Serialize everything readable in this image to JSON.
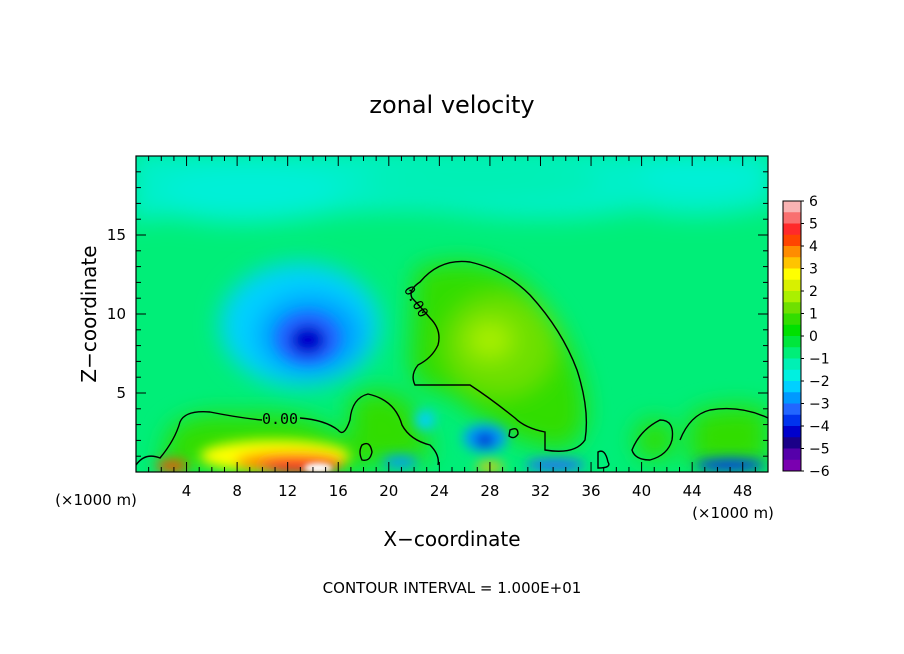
{
  "chart_data": {
    "type": "heatmap",
    "title": "zonal velocity",
    "xlabel": "X−coordinate",
    "ylabel": "Z−coordinate",
    "x_unit_left": "(×1000 m)",
    "x_unit_right": "(×1000 m)",
    "xlim": [
      0,
      50
    ],
    "ylim": [
      0,
      20
    ],
    "x_ticks": [
      "4",
      "8",
      "12",
      "16",
      "20",
      "24",
      "28",
      "32",
      "36",
      "40",
      "44",
      "48"
    ],
    "y_ticks": [
      "5",
      "10",
      "15"
    ],
    "contour_labels": [
      "0.00",
      "0.00"
    ],
    "colorbar": {
      "range": [
        -6,
        6
      ],
      "tick_labels": [
        "6",
        "5",
        "4",
        "3",
        "2",
        "1",
        "0",
        "−1",
        "−2",
        "−3",
        "−4",
        "−5",
        "−6"
      ],
      "colors": [
        "#f9b3b3",
        "#f97070",
        "#ff2a2a",
        "#ff4500",
        "#ff8c00",
        "#ffc400",
        "#ffff00",
        "#d8f000",
        "#aaf000",
        "#6ee000",
        "#33dd00",
        "#00e000",
        "#00e63c",
        "#00ee78",
        "#00f0b4",
        "#00f0e0",
        "#00d0ff",
        "#0099ff",
        "#2266ff",
        "#0033ee",
        "#0000cc",
        "#1a0088",
        "#5500aa",
        "#7a00b0"
      ]
    },
    "footer": "CONTOUR INTERVAL = 1.000E+01",
    "features": [
      {
        "kind": "min",
        "x": 13.5,
        "z": 8.5,
        "value": -5
      },
      {
        "kind": "min",
        "x": 27.5,
        "z": 2.0,
        "value": -4
      },
      {
        "kind": "max",
        "x": 14.0,
        "z": 0.5,
        "value": 5
      },
      {
        "kind": "max",
        "x": 27.0,
        "z": 8.5,
        "value": 1.5
      }
    ]
  }
}
